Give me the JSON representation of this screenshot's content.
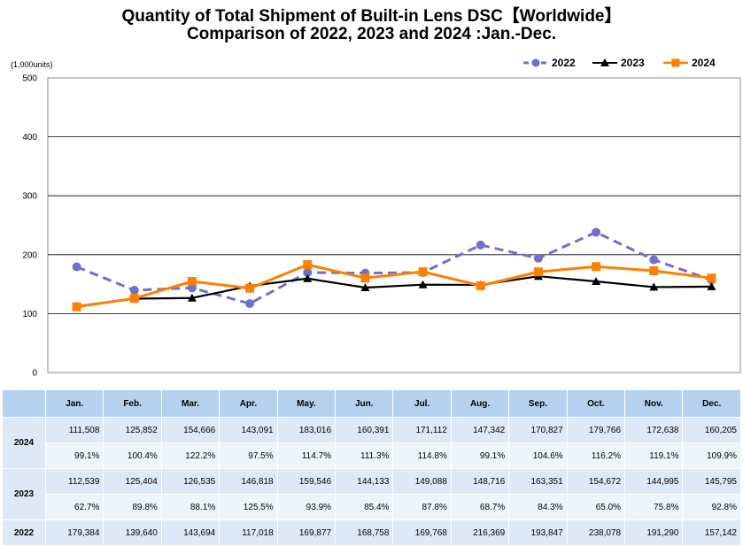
{
  "title_line1": "Quantity of Total Shipment of Built-in Lens DSC【Worldwide】",
  "title_line2": "Comparison of 2022, 2023 and 2024 :Jan.-Dec.",
  "units": "(1,000units)",
  "chart_data": {
    "type": "line",
    "categories": [
      "Jan.",
      "Feb.",
      "Mar.",
      "Apr.",
      "May.",
      "Jun.",
      "Jul.",
      "Aug.",
      "Sep.",
      "Oct.",
      "Nov.",
      "Dec."
    ],
    "ylim": [
      0,
      500
    ],
    "yticks": [
      "0",
      "100",
      "200",
      "300",
      "400",
      "500"
    ],
    "grid": true,
    "legend_position": "top-right",
    "series": [
      {
        "name": "2022",
        "color": "#7070cc",
        "style": "dashed",
        "marker": "circle",
        "values": [
          179.384,
          139.64,
          143.694,
          117.018,
          169.877,
          168.758,
          169.768,
          216.369,
          193.847,
          238.078,
          191.29,
          157.142
        ]
      },
      {
        "name": "2023",
        "color": "#000000",
        "style": "solid",
        "marker": "triangle",
        "values": [
          112.539,
          125.404,
          126.535,
          146.818,
          159.546,
          144.133,
          149.088,
          148.716,
          163.351,
          154.672,
          144.995,
          145.795
        ]
      },
      {
        "name": "2024",
        "color": "#ff7f00",
        "style": "solid",
        "marker": "square",
        "values": [
          111.508,
          125.852,
          154.666,
          143.091,
          183.016,
          160.391,
          171.112,
          147.342,
          170.827,
          179.766,
          172.638,
          160.205
        ]
      }
    ]
  },
  "table": {
    "headers": [
      "",
      "Jan.",
      "Feb.",
      "Mar.",
      "Apr.",
      "May.",
      "Jun.",
      "Jul.",
      "Aug.",
      "Sep.",
      "Oct.",
      "Nov.",
      "Dec."
    ],
    "rows": [
      {
        "label": "2024",
        "values": [
          "111,508",
          "125,852",
          "154,666",
          "143,091",
          "183,016",
          "160,391",
          "171,112",
          "147,342",
          "170,827",
          "179,766",
          "172,638",
          "160,205"
        ],
        "ratios": [
          "99.1%",
          "100.4%",
          "122.2%",
          "97.5%",
          "114.7%",
          "111.3%",
          "114.8%",
          "99.1%",
          "104.6%",
          "116.2%",
          "119.1%",
          "109.9%"
        ]
      },
      {
        "label": "2023",
        "values": [
          "112,539",
          "125,404",
          "126,535",
          "146,818",
          "159,546",
          "144,133",
          "149,088",
          "148,716",
          "163,351",
          "154,672",
          "144,995",
          "145,795"
        ],
        "ratios": [
          "62.7%",
          "89.8%",
          "88.1%",
          "125.5%",
          "93.9%",
          "85.4%",
          "87.8%",
          "68.7%",
          "84.3%",
          "65.0%",
          "75.8%",
          "92.8%"
        ]
      },
      {
        "label": "2022",
        "values": [
          "179,384",
          "139,640",
          "143,694",
          "117,018",
          "169,877",
          "168,758",
          "169,768",
          "216,369",
          "193,847",
          "238,078",
          "191,290",
          "157,142"
        ],
        "ratios": []
      }
    ]
  }
}
